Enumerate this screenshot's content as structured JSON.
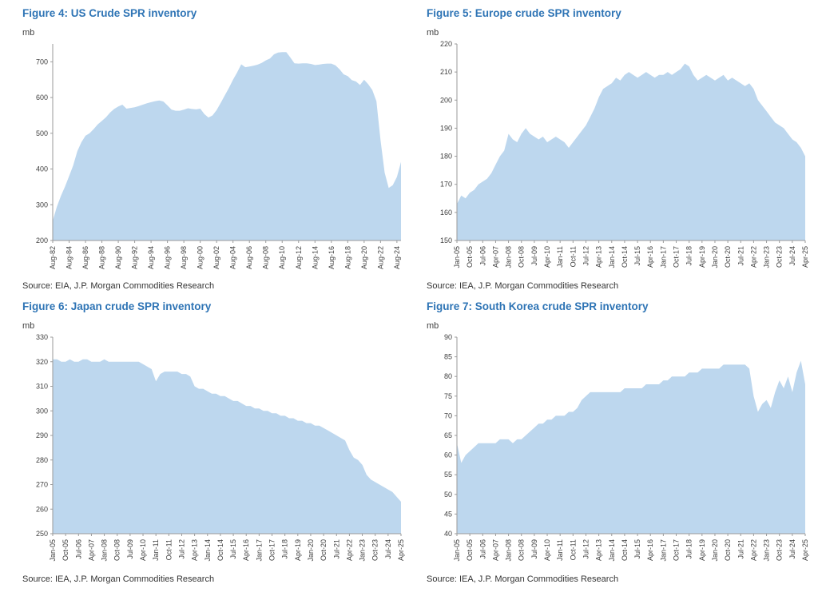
{
  "style": {
    "title_color": "#2E74B5",
    "area_fill": "#BDD7EE",
    "axis_color": "#9a9a9a",
    "tick_text_color": "#404040"
  },
  "chart_data": [
    {
      "id": "figure-4",
      "type": "area",
      "title": "Figure 4: US Crude SPR inventory",
      "unit": "mb",
      "source": "Source: EIA, J.P. Morgan Commodities Research",
      "ylim": [
        200,
        750
      ],
      "yticks": [
        200,
        300,
        400,
        500,
        600,
        700
      ],
      "x_interval_months": 6,
      "xtick_start": 0,
      "xtick_step": 4,
      "xtick_labels": [
        "Aug-82",
        "Aug-84",
        "Aug-86",
        "Aug-88",
        "Aug-90",
        "Aug-92",
        "Aug-94",
        "Aug-96",
        "Aug-98",
        "Aug-00",
        "Aug-02",
        "Aug-04",
        "Aug-06",
        "Aug-08",
        "Aug-10",
        "Aug-12",
        "Aug-14",
        "Aug-16",
        "Aug-18",
        "Aug-20",
        "Aug-22",
        "Aug-24"
      ],
      "values": [
        255,
        294,
        325,
        351,
        380,
        410,
        450,
        475,
        493,
        500,
        512,
        525,
        535,
        545,
        558,
        568,
        575,
        580,
        569,
        571,
        573,
        576,
        580,
        584,
        587,
        590,
        592,
        589,
        578,
        566,
        563,
        563,
        566,
        570,
        568,
        567,
        569,
        554,
        544,
        550,
        565,
        585,
        606,
        627,
        650,
        670,
        693,
        685,
        687,
        689,
        692,
        697,
        704,
        709,
        721,
        726,
        727,
        727,
        712,
        696,
        695,
        696,
        696,
        694,
        691,
        692,
        694,
        695,
        695,
        690,
        679,
        665,
        660,
        649,
        645,
        635,
        650,
        637,
        621,
        590,
        480,
        390,
        347,
        355,
        378,
        420
      ]
    },
    {
      "id": "figure-5",
      "type": "area",
      "title": "Figure 5: Europe crude SPR inventory",
      "unit": "mb",
      "source": "Source: IEA, J.P. Morgan Commodities Research",
      "ylim": [
        150,
        220
      ],
      "yticks": [
        150,
        160,
        170,
        180,
        190,
        200,
        210,
        220
      ],
      "x_interval_months": 3,
      "xtick_start": 0,
      "xtick_step": 3,
      "xtick_labels": [
        "Jan-05",
        "Oct-05",
        "Jul-06",
        "Apr-07",
        "Jan-08",
        "Oct-08",
        "Jul-09",
        "Apr-10",
        "Jan-11",
        "Oct-11",
        "Jul-12",
        "Apr-13",
        "Jan-14",
        "Oct-14",
        "Jul-15",
        "Apr-16",
        "Jan-17",
        "Oct-17",
        "Jul-18",
        "Apr-19",
        "Jan-20",
        "Oct-20",
        "Jul-21",
        "Apr-22",
        "Jan-23",
        "Oct-23",
        "Jul-24",
        "Apr-25"
      ],
      "values": [
        163,
        166,
        165,
        167,
        168,
        170,
        171,
        172,
        174,
        177,
        180,
        182,
        188,
        186,
        185,
        188,
        190,
        188,
        187,
        186,
        187,
        185,
        186,
        187,
        186,
        185,
        183,
        185,
        187,
        189,
        191,
        194,
        197,
        201,
        204,
        205,
        206,
        208,
        207,
        209,
        210,
        209,
        208,
        209,
        210,
        209,
        208,
        209,
        209,
        210,
        209,
        210,
        211,
        213,
        212,
        209,
        207,
        208,
        209,
        208,
        207,
        208,
        209,
        207,
        208,
        207,
        206,
        205,
        206,
        204,
        200,
        198,
        196,
        194,
        192,
        191,
        190,
        188,
        186,
        185,
        183,
        180
      ]
    },
    {
      "id": "figure-6",
      "type": "area",
      "title": "Figure 6: Japan crude SPR inventory",
      "unit": "mb",
      "source": "Source: IEA, J.P. Morgan Commodities Research",
      "ylim": [
        250,
        330
      ],
      "yticks": [
        250,
        260,
        270,
        280,
        290,
        300,
        310,
        320,
        330
      ],
      "x_interval_months": 3,
      "xtick_start": 0,
      "xtick_step": 3,
      "xtick_labels": [
        "Jan-05",
        "Oct-05",
        "Jul-06",
        "Apr-07",
        "Jan-08",
        "Oct-08",
        "Jul-09",
        "Apr-10",
        "Jan-11",
        "Oct-11",
        "Jul-12",
        "Apr-13",
        "Jan-14",
        "Oct-14",
        "Jul-15",
        "Apr-16",
        "Jan-17",
        "Oct-17",
        "Jul-18",
        "Apr-19",
        "Jan-20",
        "Oct-20",
        "Jul-21",
        "Apr-22",
        "Jan-23",
        "Oct-23",
        "Jul-24",
        "Apr-25"
      ],
      "values": [
        321,
        321,
        320,
        320,
        321,
        320,
        320,
        321,
        321,
        320,
        320,
        320,
        321,
        320,
        320,
        320,
        320,
        320,
        320,
        320,
        320,
        319,
        318,
        317,
        312,
        315,
        316,
        316,
        316,
        316,
        315,
        315,
        314,
        310,
        309,
        309,
        308,
        307,
        307,
        306,
        306,
        305,
        304,
        304,
        303,
        302,
        302,
        301,
        301,
        300,
        300,
        299,
        299,
        298,
        298,
        297,
        297,
        296,
        296,
        295,
        295,
        294,
        294,
        293,
        292,
        291,
        290,
        289,
        288,
        284,
        281,
        280,
        278,
        274,
        272,
        271,
        270,
        269,
        268,
        267,
        265,
        263
      ]
    },
    {
      "id": "figure-7",
      "type": "area",
      "title": "Figure 7: South Korea crude SPR inventory",
      "unit": "mb",
      "source": "Source: IEA, J.P. Morgan Commodities Research",
      "ylim": [
        40,
        90
      ],
      "yticks": [
        40,
        45,
        50,
        55,
        60,
        65,
        70,
        75,
        80,
        85,
        90
      ],
      "x_interval_months": 3,
      "xtick_start": 0,
      "xtick_step": 3,
      "xtick_labels": [
        "Jan-05",
        "Oct-05",
        "Jul-06",
        "Apr-07",
        "Jan-08",
        "Oct-08",
        "Jul-09",
        "Apr-10",
        "Jan-11",
        "Oct-11",
        "Jul-12",
        "Apr-13",
        "Jan-14",
        "Oct-14",
        "Jul-15",
        "Apr-16",
        "Jan-17",
        "Oct-17",
        "Jul-18",
        "Apr-19",
        "Jan-20",
        "Oct-20",
        "Jul-21",
        "Apr-22",
        "Jan-23",
        "Oct-23",
        "Jul-24",
        "Apr-25"
      ],
      "values": [
        63,
        58,
        60,
        61,
        62,
        63,
        63,
        63,
        63,
        63,
        64,
        64,
        64,
        63,
        64,
        64,
        65,
        66,
        67,
        68,
        68,
        69,
        69,
        70,
        70,
        70,
        71,
        71,
        72,
        74,
        75,
        76,
        76,
        76,
        76,
        76,
        76,
        76,
        76,
        77,
        77,
        77,
        77,
        77,
        78,
        78,
        78,
        78,
        79,
        79,
        80,
        80,
        80,
        80,
        81,
        81,
        81,
        82,
        82,
        82,
        82,
        82,
        83,
        83,
        83,
        83,
        83,
        83,
        82,
        75,
        71,
        73,
        74,
        72,
        76,
        79,
        77,
        80,
        76,
        81,
        84,
        78
      ]
    }
  ]
}
